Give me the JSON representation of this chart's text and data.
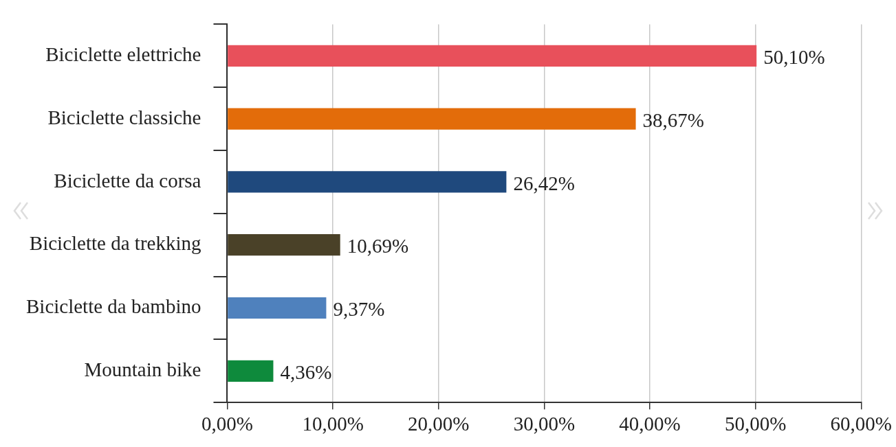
{
  "chart_data": {
    "type": "bar",
    "orientation": "horizontal",
    "categories": [
      "Biciclette elettriche",
      "Biciclette classiche",
      "Biciclette da corsa",
      "Biciclette da trekking",
      "Biciclette da bambino",
      "Mountain bike"
    ],
    "values": [
      50.1,
      38.67,
      26.42,
      10.69,
      9.37,
      4.36
    ],
    "colors": [
      "#e8505b",
      "#e36c0a",
      "#1f497d",
      "#4a4128",
      "#4f81bd",
      "#0e8a3c"
    ],
    "value_labels": [
      "50,10%",
      "38,67%",
      "26,42%",
      "10,69%",
      "9,37%",
      "4,36%"
    ],
    "xlim": [
      0,
      60
    ],
    "xticks": [
      {
        "value": 0,
        "label": "0,00%"
      },
      {
        "value": 10,
        "label": "10,00%"
      },
      {
        "value": 20,
        "label": "20,00%"
      },
      {
        "value": 30,
        "label": "30,00%"
      },
      {
        "value": 40,
        "label": "40,00%"
      },
      {
        "value": 50,
        "label": "50,00%"
      },
      {
        "value": 60,
        "label": "60,00%"
      }
    ],
    "grid": "x",
    "legend": false
  }
}
